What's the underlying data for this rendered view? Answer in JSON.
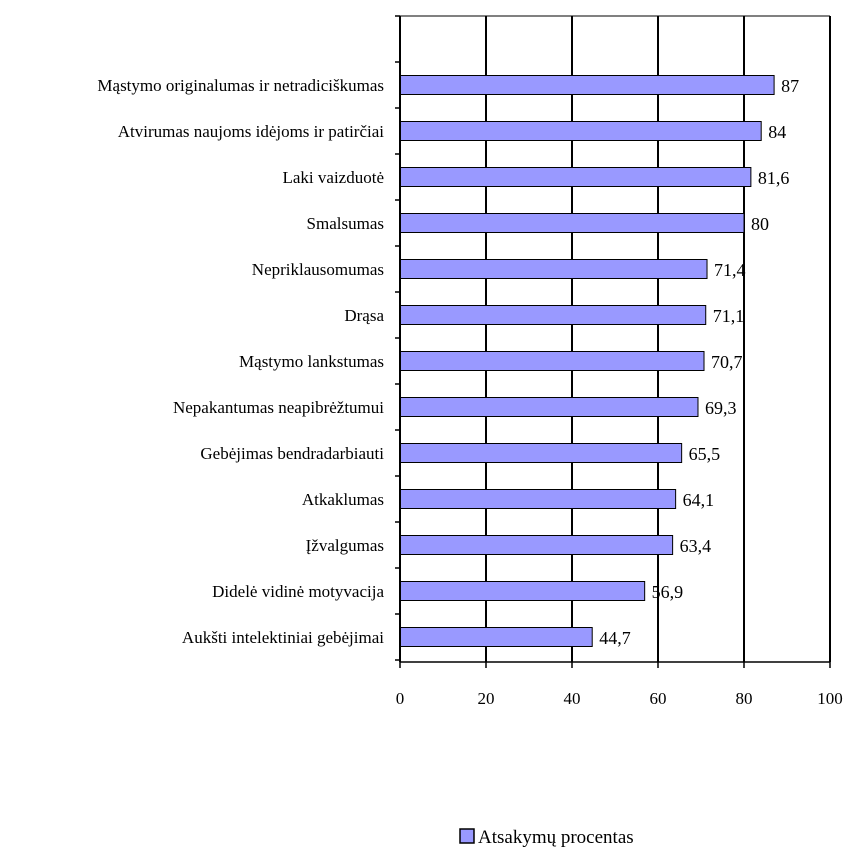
{
  "chart_data": {
    "type": "bar",
    "orientation": "horizontal",
    "categories": [
      "Mąstymo originalumas ir netradiciškumas",
      "Atvirumas naujoms idėjoms ir patirčiai",
      "Laki vaizduotė",
      "Smalsumas",
      "Nepriklausomumas",
      "Drąsa",
      "Mąstymo lankstumas",
      "Nepakantumas neapibrėžtumui",
      "Gebėjimas bendradarbiauti",
      "Atkaklumas",
      "Įžvalgumas",
      "Didelė vidinė motyvacija",
      "Aukšti intelektiniai gebėjimai"
    ],
    "series": [
      {
        "name": "Atsakymų procentas",
        "values": [
          87,
          84,
          81.6,
          80,
          71.4,
          71.1,
          70.7,
          69.3,
          65.5,
          64.1,
          63.4,
          56.9,
          44.7
        ],
        "data_labels": [
          "87",
          "84",
          "81,6",
          "80",
          "71,4",
          "71,1",
          "70,7",
          "69,3",
          "65,5",
          "64,1",
          "63,4",
          "56,9",
          "44,7"
        ]
      }
    ],
    "xlim": [
      0,
      100
    ],
    "xticks": [
      0,
      20,
      40,
      60,
      80,
      100
    ],
    "xtick_labels": [
      "0",
      "20",
      "40",
      "60",
      "80",
      "100"
    ],
    "grid": "vertical",
    "legend_position": "bottom",
    "colors": {
      "bar_fill": "#9999ff",
      "bar_stroke": "#000000",
      "grid": "#000000"
    }
  }
}
